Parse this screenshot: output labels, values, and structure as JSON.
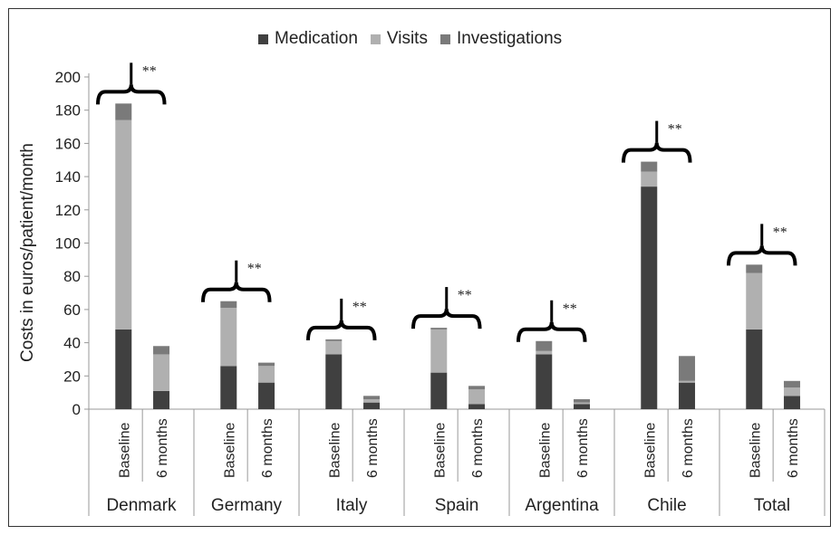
{
  "chart_data": {
    "type": "bar",
    "stacked": true,
    "title": "",
    "ylabel": "Costs in euros/patient/month",
    "ylim": [
      0,
      200
    ],
    "yticks": [
      0,
      20,
      40,
      60,
      80,
      100,
      120,
      140,
      160,
      180,
      200
    ],
    "grid": false,
    "legend_position": "top",
    "groups": [
      {
        "name": "Denmark",
        "bars": [
          {
            "label": "Baseline",
            "values": [
              48,
              126,
              10
            ]
          },
          {
            "label": "6 months",
            "values": [
              11,
              22,
              5
            ]
          }
        ]
      },
      {
        "name": "Germany",
        "bars": [
          {
            "label": "Baseline",
            "values": [
              26,
              35,
              4
            ]
          },
          {
            "label": "6 months",
            "values": [
              16,
              10,
              2
            ]
          }
        ]
      },
      {
        "name": "Italy",
        "bars": [
          {
            "label": "Baseline",
            "values": [
              33,
              8,
              1
            ]
          },
          {
            "label": "6 months",
            "values": [
              4,
              2,
              2
            ]
          }
        ]
      },
      {
        "name": "Spain",
        "bars": [
          {
            "label": "Baseline",
            "values": [
              22,
              26,
              1
            ]
          },
          {
            "label": "6 months",
            "values": [
              3,
              9,
              2
            ]
          }
        ]
      },
      {
        "name": "Argentina",
        "bars": [
          {
            "label": "Baseline",
            "values": [
              33,
              2,
              6
            ]
          },
          {
            "label": "6 months",
            "values": [
              3,
              1,
              2
            ]
          }
        ]
      },
      {
        "name": "Chile",
        "bars": [
          {
            "label": "Baseline",
            "values": [
              134,
              9,
              6
            ]
          },
          {
            "label": "6 months",
            "values": [
              16,
              1,
              15
            ]
          }
        ]
      },
      {
        "name": "Total",
        "bars": [
          {
            "label": "Baseline",
            "values": [
              48,
              34,
              5
            ]
          },
          {
            "label": "6 months",
            "values": [
              8,
              5,
              4
            ]
          }
        ]
      }
    ],
    "series": [
      {
        "name": "Medication",
        "color": "#404040"
      },
      {
        "name": "Visits",
        "color": "#b0b0b0"
      },
      {
        "name": "Investigations",
        "color": "#7a7a7a"
      }
    ],
    "annotation": "**"
  }
}
